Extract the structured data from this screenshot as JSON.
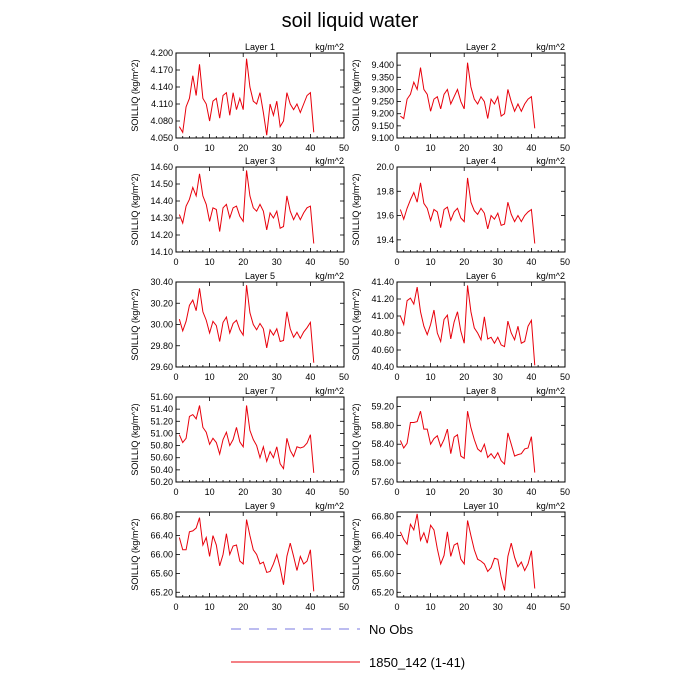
{
  "figure": {
    "title": "soil liquid water"
  },
  "legend": {
    "items": [
      {
        "label": "No Obs",
        "color": "#7a7ae0",
        "dashed": true
      },
      {
        "label": "1850_142 (1-41)",
        "color": "#e8000b",
        "dashed": false
      }
    ]
  },
  "colors": {
    "series": "#e8000b",
    "obs": "#7a7ae0"
  },
  "chart_data": [
    {
      "type": "line",
      "title": "Layer 1",
      "unit": "kg/m^2",
      "ylabel": "SOILLIQ  (kg/m^2)",
      "xlim": [
        0,
        50
      ],
      "xticks": [
        0,
        10,
        20,
        30,
        40,
        50
      ],
      "ylim": [
        4.05,
        4.2
      ],
      "yticks": [
        "4.050",
        "4.080",
        "4.110",
        "4.140",
        "4.170",
        "4.200"
      ],
      "series": [
        {
          "name": "1850_142 (1-41)",
          "x_start": 1,
          "values": [
            4.07,
            4.06,
            4.105,
            4.12,
            4.16,
            4.125,
            4.18,
            4.12,
            4.11,
            4.08,
            4.115,
            4.12,
            4.085,
            4.125,
            4.13,
            4.09,
            4.13,
            4.1,
            4.12,
            4.1,
            4.19,
            4.14,
            4.115,
            4.11,
            4.13,
            4.095,
            4.055,
            4.11,
            4.09,
            4.115,
            4.07,
            4.08,
            4.13,
            4.11,
            4.1,
            4.11,
            4.095,
            4.11,
            4.125,
            4.13,
            4.06
          ]
        }
      ]
    },
    {
      "type": "line",
      "title": "Layer 2",
      "unit": "kg/m^2",
      "ylabel": "SOILLIQ  (kg/m^2)",
      "xlim": [
        0,
        50
      ],
      "xticks": [
        0,
        10,
        20,
        30,
        40,
        50
      ],
      "ylim": [
        9.1,
        9.45
      ],
      "yticks": [
        "9.100",
        "9.150",
        "9.200",
        "9.250",
        "9.300",
        "9.350",
        "9.400"
      ],
      "series": [
        {
          "name": "1850_142 (1-41)",
          "x_start": 1,
          "values": [
            9.19,
            9.18,
            9.26,
            9.28,
            9.33,
            9.3,
            9.39,
            9.3,
            9.28,
            9.21,
            9.26,
            9.27,
            9.22,
            9.28,
            9.3,
            9.24,
            9.27,
            9.3,
            9.25,
            9.22,
            9.41,
            9.31,
            9.26,
            9.24,
            9.27,
            9.25,
            9.18,
            9.26,
            9.24,
            9.27,
            9.19,
            9.2,
            9.3,
            9.25,
            9.21,
            9.24,
            9.21,
            9.24,
            9.26,
            9.27,
            9.14
          ]
        }
      ]
    },
    {
      "type": "line",
      "title": "Layer 3",
      "unit": "kg/m^2",
      "ylabel": "SOILLIQ  (kg/m^2)",
      "xlim": [
        0,
        50
      ],
      "xticks": [
        0,
        10,
        20,
        30,
        40,
        50
      ],
      "ylim": [
        14.1,
        14.6
      ],
      "yticks": [
        "14.10",
        "14.20",
        "14.30",
        "14.40",
        "14.50",
        "14.60"
      ],
      "series": [
        {
          "name": "1850_142 (1-41)",
          "x_start": 1,
          "values": [
            14.32,
            14.27,
            14.37,
            14.41,
            14.48,
            14.43,
            14.56,
            14.43,
            14.38,
            14.28,
            14.36,
            14.35,
            14.22,
            14.36,
            14.38,
            14.3,
            14.36,
            14.37,
            14.31,
            14.28,
            14.58,
            14.43,
            14.36,
            14.34,
            14.38,
            14.34,
            14.23,
            14.33,
            14.3,
            14.34,
            14.24,
            14.25,
            14.43,
            14.34,
            14.29,
            14.33,
            14.29,
            14.33,
            14.36,
            14.37,
            14.15
          ]
        }
      ]
    },
    {
      "type": "line",
      "title": "Layer 4",
      "unit": "kg/m^2",
      "ylabel": "SOILLIQ  (kg/m^2)",
      "xlim": [
        0,
        50
      ],
      "xticks": [
        0,
        10,
        20,
        30,
        40,
        50
      ],
      "ylim": [
        19.3,
        20.0
      ],
      "yticks": [
        "19.4",
        "19.6",
        "19.8",
        "20.0"
      ],
      "series": [
        {
          "name": "1850_142 (1-41)",
          "x_start": 1,
          "values": [
            19.65,
            19.57,
            19.66,
            19.73,
            19.79,
            19.71,
            19.87,
            19.7,
            19.66,
            19.56,
            19.65,
            19.63,
            19.5,
            19.65,
            19.67,
            19.56,
            19.63,
            19.66,
            19.58,
            19.55,
            19.91,
            19.71,
            19.64,
            19.61,
            19.66,
            19.62,
            19.49,
            19.6,
            19.57,
            19.62,
            19.52,
            19.53,
            19.71,
            19.61,
            19.55,
            19.6,
            19.55,
            19.6,
            19.63,
            19.65,
            19.37
          ]
        }
      ]
    },
    {
      "type": "line",
      "title": "Layer 5",
      "unit": "kg/m^2",
      "ylabel": "SOILLIQ  (kg/m^2)",
      "xlim": [
        0,
        50
      ],
      "xticks": [
        0,
        10,
        20,
        30,
        40,
        50
      ],
      "ylim": [
        29.6,
        30.4
      ],
      "yticks": [
        "29.60",
        "29.80",
        "30.00",
        "30.20",
        "30.40"
      ],
      "series": [
        {
          "name": "1850_142 (1-41)",
          "x_start": 1,
          "values": [
            30.05,
            29.94,
            30.03,
            30.18,
            30.23,
            30.13,
            30.34,
            30.12,
            30.04,
            29.92,
            30.03,
            29.99,
            29.84,
            30.02,
            30.07,
            29.92,
            30.01,
            30.04,
            29.95,
            29.9,
            30.37,
            30.11,
            30.0,
            29.95,
            30.01,
            29.96,
            29.78,
            29.95,
            29.9,
            29.96,
            29.84,
            29.85,
            30.12,
            29.96,
            29.88,
            29.93,
            29.87,
            29.93,
            29.97,
            30.02,
            29.64
          ]
        }
      ]
    },
    {
      "type": "line",
      "title": "Layer 6",
      "unit": "kg/m^2",
      "ylabel": "SOILLIQ  (kg/m^2)",
      "xlim": [
        0,
        50
      ],
      "xticks": [
        0,
        10,
        20,
        30,
        40,
        50
      ],
      "ylim": [
        40.4,
        41.4
      ],
      "yticks": [
        "40.40",
        "40.60",
        "40.80",
        "41.00",
        "41.20",
        "41.40"
      ],
      "series": [
        {
          "name": "1850_142 (1-41)",
          "x_start": 1,
          "values": [
            41.0,
            40.9,
            41.18,
            41.21,
            41.14,
            41.34,
            41.05,
            40.88,
            40.78,
            40.9,
            41.07,
            40.8,
            40.7,
            40.96,
            41.01,
            40.73,
            40.93,
            41.05,
            40.82,
            40.68,
            41.36,
            41.05,
            40.86,
            40.8,
            40.72,
            40.99,
            40.73,
            40.75,
            40.68,
            40.75,
            40.66,
            40.64,
            40.94,
            40.8,
            40.72,
            40.88,
            40.68,
            40.7,
            40.88,
            40.95,
            40.42
          ]
        }
      ]
    },
    {
      "type": "line",
      "title": "Layer 7",
      "unit": "kg/m^2",
      "ylabel": "SOILLIQ  (kg/m^2)",
      "xlim": [
        0,
        50
      ],
      "xticks": [
        0,
        10,
        20,
        30,
        40,
        50
      ],
      "ylim": [
        50.2,
        51.6
      ],
      "yticks": [
        "50.20",
        "50.40",
        "50.60",
        "50.80",
        "51.00",
        "51.20",
        "51.40",
        "51.60"
      ],
      "series": [
        {
          "name": "1850_142 (1-41)",
          "x_start": 1,
          "values": [
            50.98,
            50.85,
            50.92,
            51.28,
            51.31,
            51.24,
            51.46,
            51.1,
            51.02,
            50.82,
            50.92,
            50.85,
            50.66,
            50.9,
            51.02,
            50.8,
            50.9,
            51.1,
            50.86,
            50.78,
            51.46,
            51.05,
            50.9,
            50.8,
            50.6,
            50.78,
            50.54,
            50.7,
            50.6,
            50.78,
            50.5,
            50.42,
            50.92,
            50.72,
            50.62,
            50.78,
            50.76,
            50.78,
            50.84,
            50.98,
            50.35
          ]
        }
      ]
    },
    {
      "type": "line",
      "title": "Layer 8",
      "unit": "kg/m^2",
      "ylabel": "SOILLIQ  (kg/m^2)",
      "xlim": [
        0,
        50
      ],
      "xticks": [
        0,
        10,
        20,
        30,
        40,
        50
      ],
      "ylim": [
        57.6,
        59.4
      ],
      "yticks": [
        "57.60",
        "58.00",
        "58.40",
        "58.80",
        "59.20"
      ],
      "series": [
        {
          "name": "1850_142 (1-41)",
          "x_start": 1,
          "values": [
            58.48,
            58.32,
            58.42,
            58.86,
            58.86,
            58.88,
            59.1,
            58.72,
            58.72,
            58.4,
            58.52,
            58.58,
            58.35,
            58.5,
            58.72,
            58.2,
            58.55,
            58.6,
            58.15,
            58.1,
            59.1,
            58.75,
            58.5,
            58.3,
            58.24,
            58.4,
            58.12,
            58.2,
            58.1,
            58.22,
            58.05,
            57.98,
            58.64,
            58.4,
            58.15,
            58.18,
            58.2,
            58.3,
            58.32,
            58.56,
            57.8
          ]
        }
      ]
    },
    {
      "type": "line",
      "title": "Layer 9",
      "unit": "kg/m^2",
      "ylabel": "SOILLIQ  (kg/m^2)",
      "xlim": [
        0,
        50
      ],
      "xticks": [
        0,
        10,
        20,
        30,
        40,
        50
      ],
      "ylim": [
        65.1,
        66.9
      ],
      "yticks": [
        "65.20",
        "65.60",
        "66.00",
        "66.40",
        "66.80"
      ],
      "series": [
        {
          "name": "1850_142 (1-41)",
          "x_start": 1,
          "values": [
            66.36,
            66.1,
            66.1,
            66.48,
            66.5,
            66.56,
            66.78,
            66.2,
            66.36,
            65.96,
            66.4,
            66.2,
            65.76,
            66.0,
            66.44,
            66.0,
            66.18,
            66.2,
            65.86,
            65.8,
            66.74,
            66.4,
            66.1,
            66.0,
            65.8,
            65.84,
            65.62,
            65.64,
            65.8,
            66.0,
            65.72,
            65.36,
            65.96,
            66.24,
            65.96,
            65.66,
            65.96,
            65.8,
            65.86,
            66.1,
            65.22
          ]
        }
      ]
    },
    {
      "type": "line",
      "title": "Layer 10",
      "unit": "kg/m^2",
      "ylabel": "SOILLIQ  (kg/m^2)",
      "xlim": [
        0,
        50
      ],
      "xticks": [
        0,
        10,
        20,
        30,
        40,
        50
      ],
      "ylim": [
        65.1,
        66.9
      ],
      "yticks": [
        "65.20",
        "65.60",
        "66.00",
        "66.40",
        "66.80"
      ],
      "series": [
        {
          "name": "1850_142 (1-41)",
          "x_start": 1,
          "values": [
            66.48,
            66.32,
            66.22,
            66.64,
            66.52,
            66.86,
            66.3,
            66.46,
            66.24,
            66.62,
            66.52,
            66.12,
            65.8,
            65.98,
            66.48,
            65.96,
            66.2,
            66.24,
            65.9,
            65.8,
            66.72,
            66.4,
            66.1,
            65.9,
            65.86,
            65.8,
            65.64,
            65.72,
            65.92,
            65.9,
            65.52,
            65.24,
            65.96,
            66.24,
            65.94,
            65.74,
            65.84,
            65.66,
            65.8,
            66.08,
            65.28
          ]
        }
      ]
    }
  ]
}
